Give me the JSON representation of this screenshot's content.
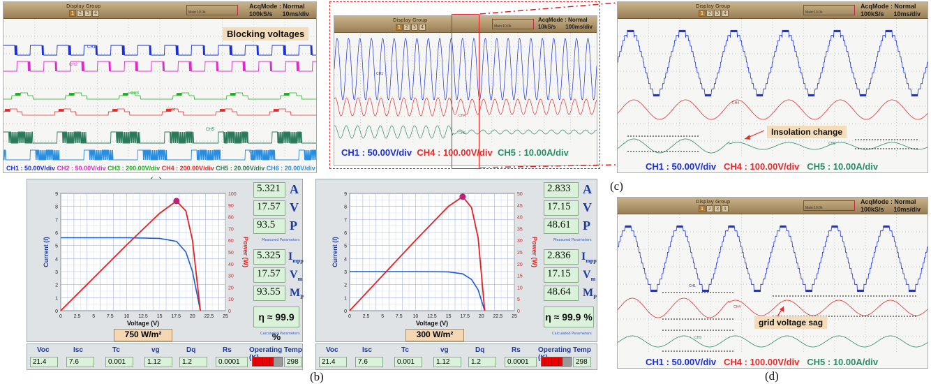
{
  "scope": {
    "display_group": "Display Group",
    "buttons": [
      "1",
      "2",
      "3",
      "4"
    ],
    "acq_mode": "AcqMode : Normal",
    "rate_a": "100kS/s",
    "div_a": "10ms/div",
    "rate_b": "10kS/s",
    "div_b": "100ms/div",
    "hz_tag": "Main:10.0k"
  },
  "panel_a": {
    "annotation": "Blocking voltages",
    "legend": [
      {
        "text": "CH1 : 50.00V/div",
        "color": "#1a2fd6"
      },
      {
        "text": "CH2 : 50.00V/div",
        "color": "#e02ad0"
      },
      {
        "text": "CH3 : 200.00V/div",
        "color": "#19b319"
      },
      {
        "text": "CH4 : 200.00V/div",
        "color": "#e52b2b"
      },
      {
        "text": "CH5 : 20.00V/div",
        "color": "#2a7a5a"
      },
      {
        "text": "CH6 : 20.00V/div",
        "color": "#2a8ee0"
      }
    ],
    "trace_labels": [
      "CH1",
      "CH2",
      "CH3",
      "CH4",
      "CH5",
      "CH6"
    ],
    "caption": "(a)"
  },
  "panel_mid": {
    "legend": [
      {
        "text": "CH1 : 50.00V/div",
        "color": "#1a2fd6"
      },
      {
        "text": "CH4 : 100.00V/div",
        "color": "#e52b2b"
      },
      {
        "text": "CH5 : 10.00A/div",
        "color": "#2a8a6a"
      }
    ],
    "trace_labels": [
      "CH1",
      "CH4",
      "CH5"
    ]
  },
  "panel_c": {
    "annotation": "Insolation change",
    "legend": [
      {
        "text": "CH1 : 50.00V/div",
        "color": "#1a2fd6"
      },
      {
        "text": "CH4 : 100.00V/div",
        "color": "#e52b2b"
      },
      {
        "text": "CH5 : 10.00A/div",
        "color": "#2a8a6a"
      }
    ],
    "trace_labels": [
      "CH4",
      "CH5"
    ],
    "caption": "(c)"
  },
  "panel_d": {
    "annotation": "grid voltage sag",
    "legend": [
      {
        "text": "CH1 : 50.00V/div",
        "color": "#1a2fd6"
      },
      {
        "text": "CH4 : 100.00V/div",
        "color": "#e52b2b"
      },
      {
        "text": "CH5 : 10.00A/div",
        "color": "#2a8a6a"
      }
    ],
    "trace_labels": [
      "CH1",
      "CH4",
      "CH5"
    ],
    "caption": "(d)"
  },
  "pv": {
    "xlabel": "Voltage (V)",
    "ylabel_left": "Current (I)",
    "ylabel_right": "Power (W)",
    "x_ticks": [
      "0",
      "2.5",
      "5",
      "7.5",
      "10",
      "12.5",
      "15",
      "17.5",
      "20",
      "22.5",
      "25"
    ],
    "y_left_ticks": [
      "0",
      "1",
      "2",
      "3",
      "4",
      "5",
      "6",
      "7",
      "8",
      "9"
    ],
    "measured_label": "Measured Parameters",
    "calculated_label": "Calculated Parameters",
    "units": {
      "a": "A",
      "v": "V",
      "p": "P",
      "impp": "I",
      "impp_sub": "mpp",
      "vm": "V",
      "vm_sub": "m",
      "mp": "M",
      "mp_sub": "P"
    },
    "eta": "η ≈ 99.9 %",
    "caption": "(b)",
    "bottom_labels": [
      "Voc",
      "Isc",
      "Tc",
      "vg",
      "Dq",
      "Rs"
    ],
    "operating_temp_label": "Operating Temp (K)",
    "left": {
      "irradiance": "750 W/m²",
      "y_right_ticks": [
        "0",
        "10",
        "20",
        "30",
        "40",
        "50",
        "60",
        "70",
        "80",
        "90",
        "100"
      ],
      "measured": [
        "5.321",
        "17.57",
        "93.5"
      ],
      "calculated": [
        "5.325",
        "17.57",
        "93.55"
      ],
      "bottom_values": [
        "21.4",
        "7.6",
        "0.001",
        "1.12",
        "1.2",
        "0.0001"
      ],
      "temp": "298",
      "temp_fill": 0.72
    },
    "right": {
      "irradiance": "300 W/m²",
      "y_right_ticks": [
        "0",
        "5",
        "10",
        "15",
        "20",
        "25",
        "30",
        "35",
        "40",
        "45",
        "50"
      ],
      "measured": [
        "2.833",
        "17.15",
        "48.61"
      ],
      "calculated": [
        "2.836",
        "17.15",
        "48.64"
      ],
      "bottom_values": [
        "21.4",
        "7.6",
        "0.001",
        "1.12",
        "1.2",
        "0.0001"
      ],
      "temp": "298",
      "temp_fill": 0.72
    }
  },
  "chart_data": [
    {
      "type": "line",
      "title": "",
      "xlabel": "Voltage (V)",
      "ylabel": "Current (I)",
      "irradiance": "750 W/m²",
      "xlim": [
        0,
        25
      ],
      "ylim": [
        0,
        9
      ],
      "ylim_right": [
        0,
        100
      ],
      "series": [
        {
          "name": "Current (I)",
          "x": [
            0,
            5,
            10,
            15,
            17.57,
            19,
            20,
            21.2
          ],
          "values": [
            5.6,
            5.6,
            5.6,
            5.55,
            5.32,
            4.5,
            3.0,
            0
          ]
        },
        {
          "name": "Power (W)",
          "x": [
            0,
            5,
            10,
            15,
            17.57,
            19,
            20,
            21.2
          ],
          "values": [
            0,
            28,
            56,
            83,
            93.5,
            85,
            60,
            0
          ]
        }
      ]
    },
    {
      "type": "line",
      "title": "",
      "xlabel": "Voltage (V)",
      "ylabel": "Current (I)",
      "irradiance": "300 W/m²",
      "xlim": [
        0,
        25
      ],
      "ylim": [
        0,
        9
      ],
      "ylim_right": [
        0,
        50
      ],
      "series": [
        {
          "name": "Current (I)",
          "x": [
            0,
            5,
            10,
            15,
            17.15,
            18.5,
            19.5,
            20.5
          ],
          "values": [
            3.0,
            3.0,
            3.0,
            2.98,
            2.83,
            2.4,
            1.6,
            0
          ]
        },
        {
          "name": "Power (W)",
          "x": [
            0,
            5,
            10,
            15,
            17.15,
            18.5,
            19.5,
            20.5
          ],
          "values": [
            0,
            15,
            30,
            44.5,
            48.6,
            44,
            31,
            0
          ]
        }
      ]
    }
  ]
}
